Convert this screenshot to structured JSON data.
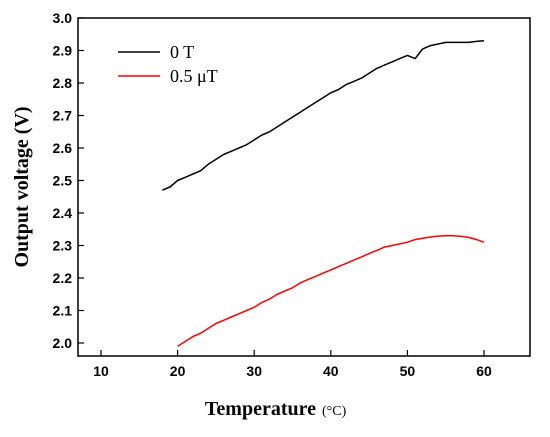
{
  "chart_data": {
    "type": "line",
    "xlabel": "Temperature",
    "xunit": "(°C)",
    "ylabel": "Output voltage (V)",
    "xlim": [
      7,
      66
    ],
    "ylim": [
      1.96,
      3.0
    ],
    "xticks": [
      10,
      20,
      30,
      40,
      50,
      60
    ],
    "yticks": [
      2.0,
      2.1,
      2.2,
      2.3,
      2.4,
      2.5,
      2.6,
      2.7,
      2.8,
      2.9,
      3.0
    ],
    "xtick_labels": [
      "10",
      "20",
      "30",
      "40",
      "50",
      "60"
    ],
    "ytick_labels": [
      "2.0",
      "2.1",
      "2.2",
      "2.3",
      "2.4",
      "2.5",
      "2.6",
      "2.7",
      "2.8",
      "2.9",
      "3.0"
    ],
    "legend_position": "top-left",
    "grid": false,
    "series": [
      {
        "name": "0 T",
        "color": "#000000",
        "x": [
          18,
          19,
          20,
          21,
          22,
          23,
          24,
          25,
          26,
          27,
          28,
          29,
          30,
          31,
          32,
          33,
          34,
          35,
          36,
          37,
          38,
          39,
          40,
          41,
          42,
          43,
          44,
          45,
          46,
          47,
          48,
          49,
          50,
          51,
          52,
          53,
          54,
          55,
          56,
          57,
          58,
          59,
          60
        ],
        "y": [
          2.47,
          2.48,
          2.5,
          2.51,
          2.52,
          2.53,
          2.55,
          2.565,
          2.58,
          2.59,
          2.6,
          2.61,
          2.625,
          2.64,
          2.65,
          2.665,
          2.68,
          2.695,
          2.71,
          2.725,
          2.74,
          2.755,
          2.77,
          2.78,
          2.795,
          2.805,
          2.815,
          2.83,
          2.845,
          2.855,
          2.865,
          2.875,
          2.885,
          2.875,
          2.905,
          2.915,
          2.92,
          2.925,
          2.925,
          2.925,
          2.925,
          2.928,
          2.93
        ]
      },
      {
        "name": "0.5 μT",
        "color": "#ff0000",
        "x": [
          20,
          21,
          22,
          23,
          24,
          25,
          26,
          27,
          28,
          29,
          30,
          31,
          32,
          33,
          34,
          35,
          36,
          37,
          38,
          39,
          40,
          41,
          42,
          43,
          44,
          45,
          46,
          47,
          48,
          49,
          50,
          51,
          52,
          53,
          54,
          55,
          56,
          57,
          58,
          59,
          60
        ],
        "y": [
          1.99,
          2.005,
          2.02,
          2.03,
          2.045,
          2.06,
          2.07,
          2.08,
          2.09,
          2.1,
          2.11,
          2.125,
          2.135,
          2.15,
          2.16,
          2.17,
          2.185,
          2.195,
          2.205,
          2.215,
          2.225,
          2.235,
          2.245,
          2.255,
          2.265,
          2.275,
          2.285,
          2.295,
          2.3,
          2.305,
          2.31,
          2.318,
          2.322,
          2.326,
          2.329,
          2.33,
          2.33,
          2.328,
          2.325,
          2.318,
          2.31
        ]
      }
    ]
  }
}
